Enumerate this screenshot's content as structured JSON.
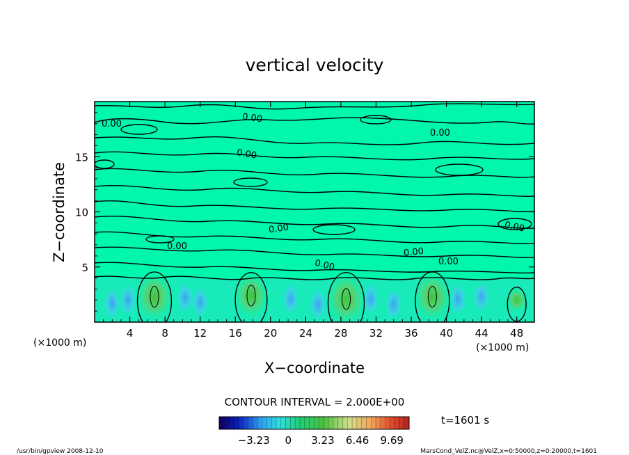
{
  "chart_data": {
    "type": "contour",
    "title": "vertical velocity",
    "xlabel": "X−coordinate",
    "ylabel": "Z−coordinate",
    "x_unit_left": "(×1000 m)",
    "x_unit_right": "(×1000 m)",
    "xlim": [
      0,
      50
    ],
    "ylim": [
      0,
      20
    ],
    "x_ticks": [
      4,
      8,
      12,
      16,
      20,
      24,
      28,
      32,
      36,
      40,
      44,
      48
    ],
    "y_ticks": [
      5,
      10,
      15
    ],
    "contour_labels": [
      "0.00",
      "0.00",
      "0.00",
      "0.00",
      "0.00",
      "0.00",
      "0.00",
      "0.00",
      "0.00",
      "0.00"
    ],
    "contour_interval_text": "CONTOUR INTERVAL = 2.000E+00",
    "time_text": "t=1601 s",
    "colorbar": {
      "tick_labels": [
        "−3.23",
        "0",
        "3.23",
        "6.46",
        "9.69"
      ],
      "tick_values": [
        -3.23,
        0,
        3.23,
        6.46,
        9.69
      ],
      "range": [
        -6.46,
        11.3
      ]
    },
    "updrafts": [
      {
        "x": 6.8,
        "z": 2.3,
        "peak": 6.5
      },
      {
        "x": 17.8,
        "z": 2.4,
        "peak": 6.0
      },
      {
        "x": 28.6,
        "z": 2.1,
        "peak": 7.0
      },
      {
        "x": 38.4,
        "z": 2.3,
        "peak": 6.5
      },
      {
        "x": 48.0,
        "z": 2.0,
        "peak": 3.0
      }
    ],
    "downdrafts": [
      {
        "x": 2.0,
        "z": 1.7
      },
      {
        "x": 3.8,
        "z": 2.0
      },
      {
        "x": 10.3,
        "z": 2.2
      },
      {
        "x": 12.0,
        "z": 1.8
      },
      {
        "x": 22.3,
        "z": 2.1
      },
      {
        "x": 25.4,
        "z": 1.6
      },
      {
        "x": 31.4,
        "z": 2.1
      },
      {
        "x": 34.0,
        "z": 1.6
      },
      {
        "x": 41.3,
        "z": 2.1
      },
      {
        "x": 44.0,
        "z": 2.3
      }
    ]
  },
  "footer": {
    "left": "/usr/bin/gpview   2008-12-10",
    "right": "MarsCond_VelZ.nc@VelZ,x=0:50000,z=0:20000,t=1601"
  }
}
